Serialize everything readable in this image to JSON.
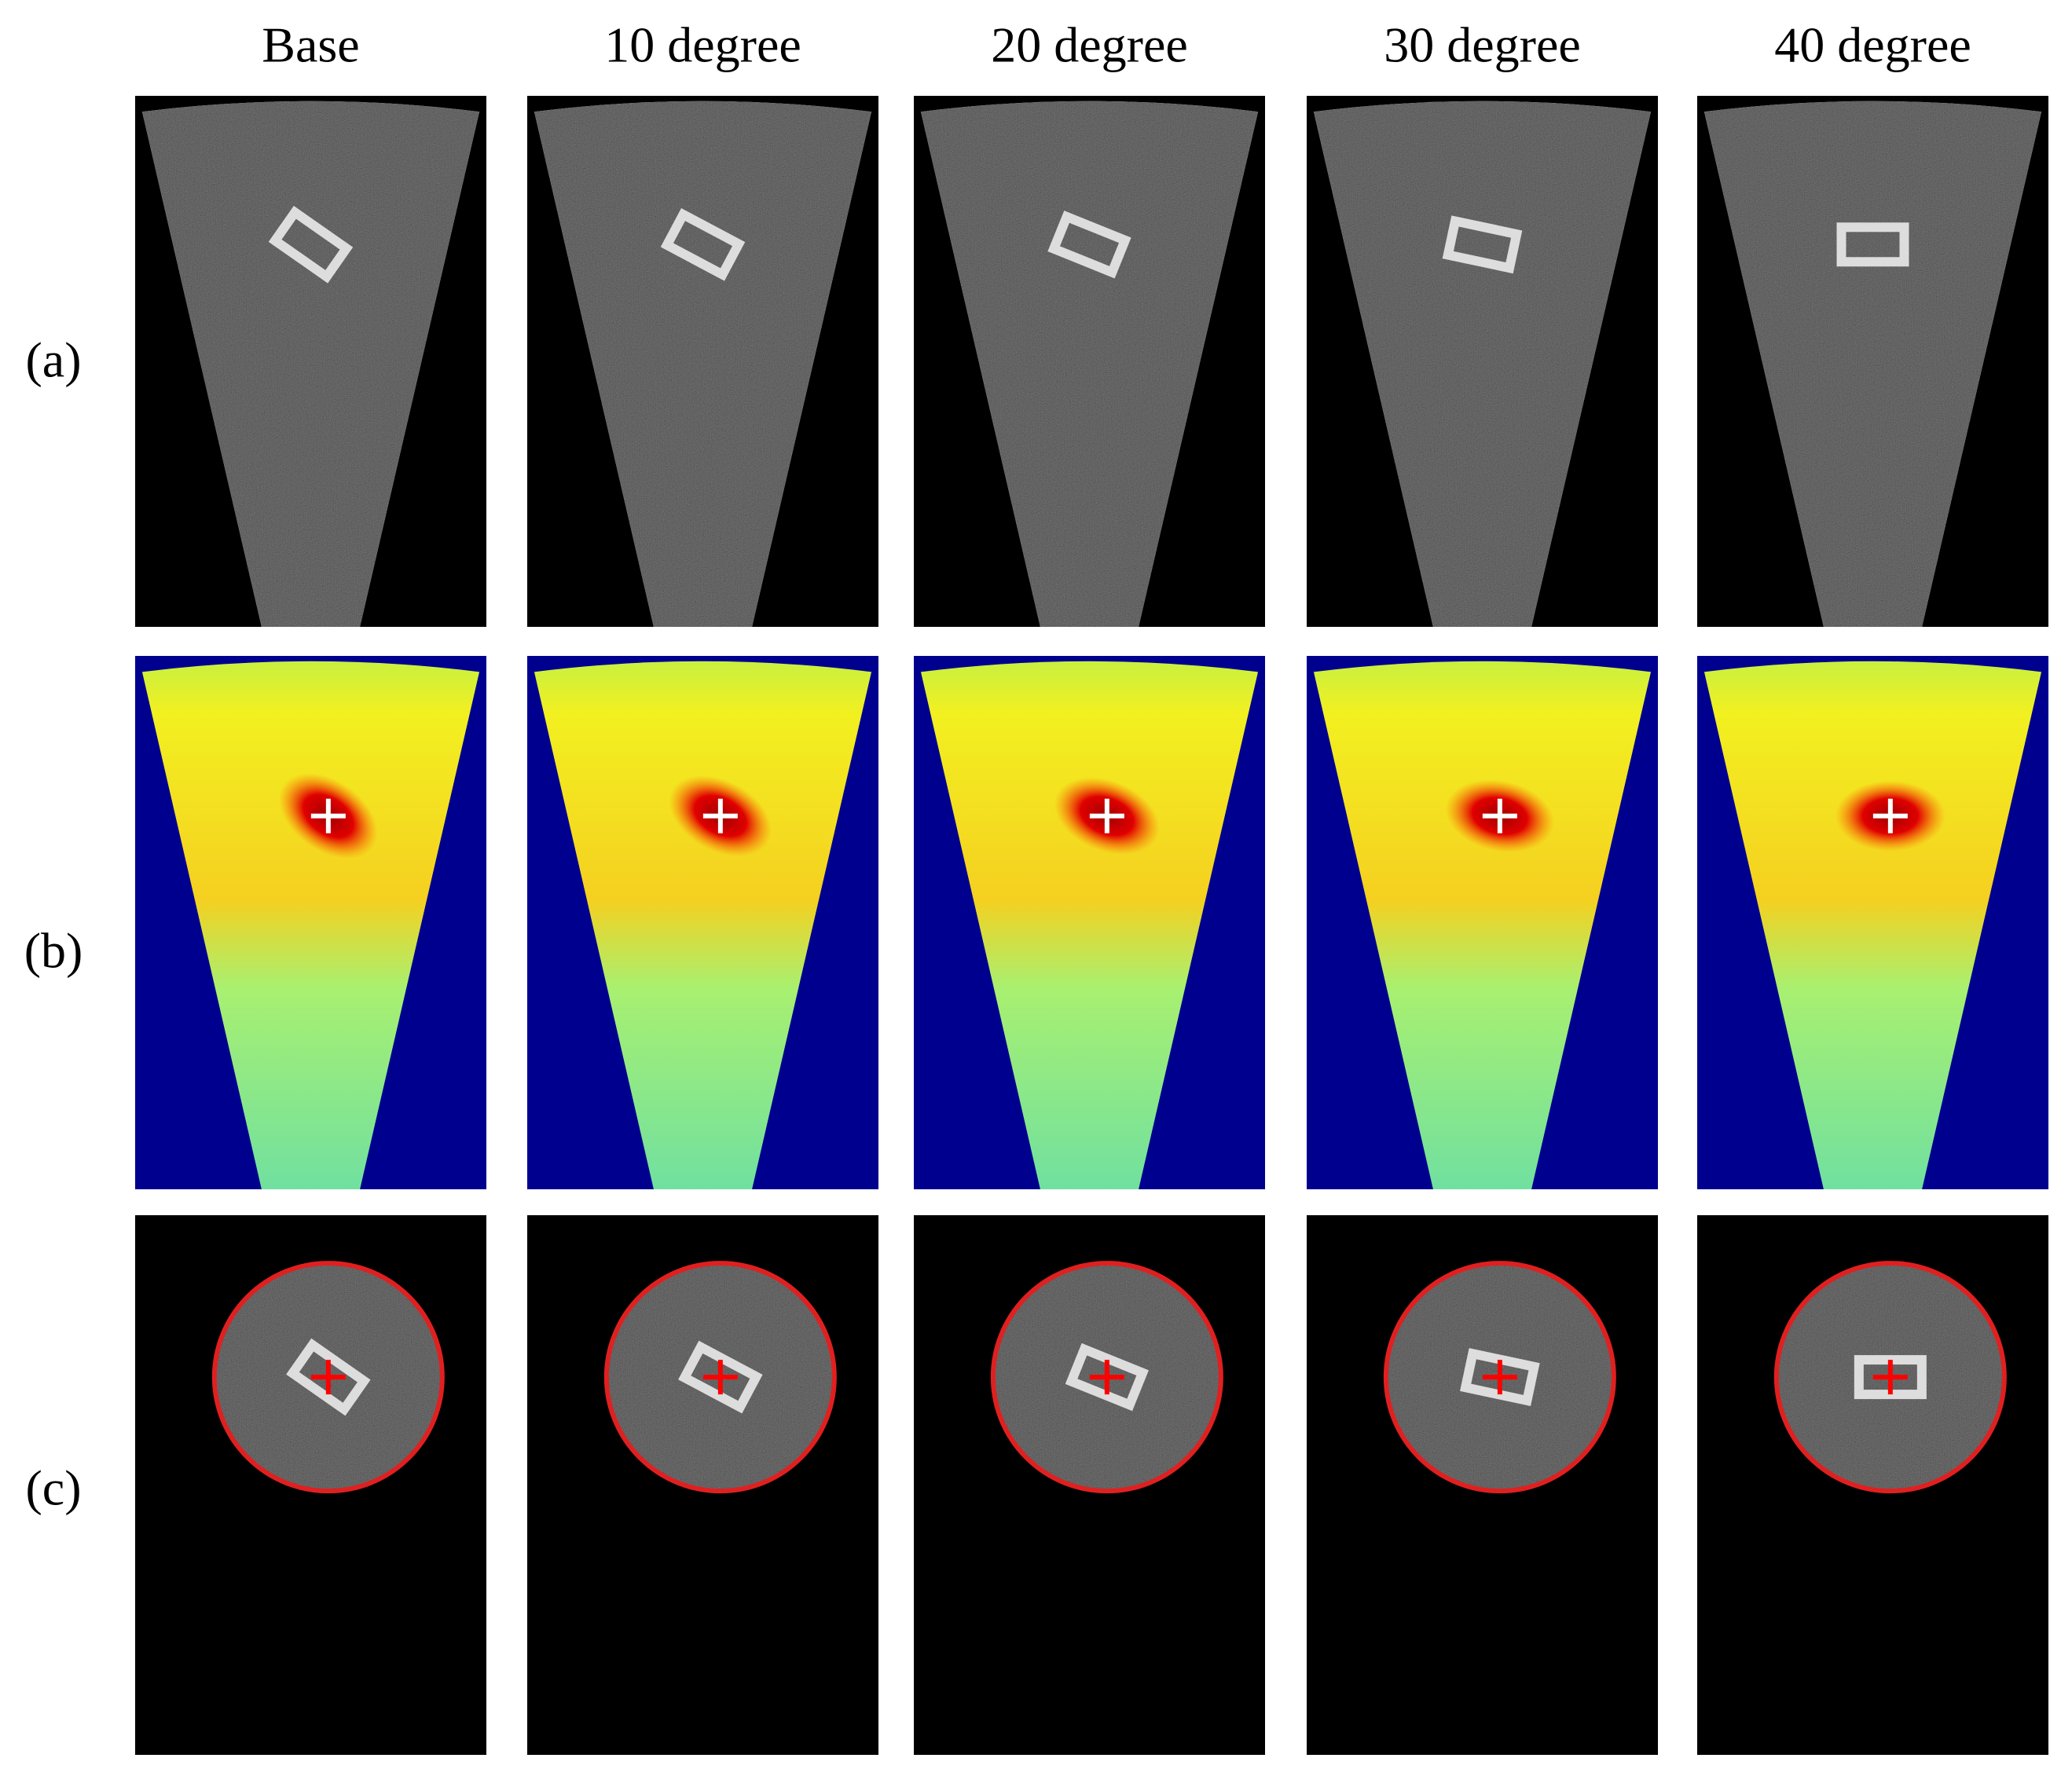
{
  "columns": [
    "Base",
    "10 degree",
    "20 degree",
    "30 degree",
    "40 degree"
  ],
  "rows": [
    "(a)",
    "(b)",
    "(c)"
  ]
}
